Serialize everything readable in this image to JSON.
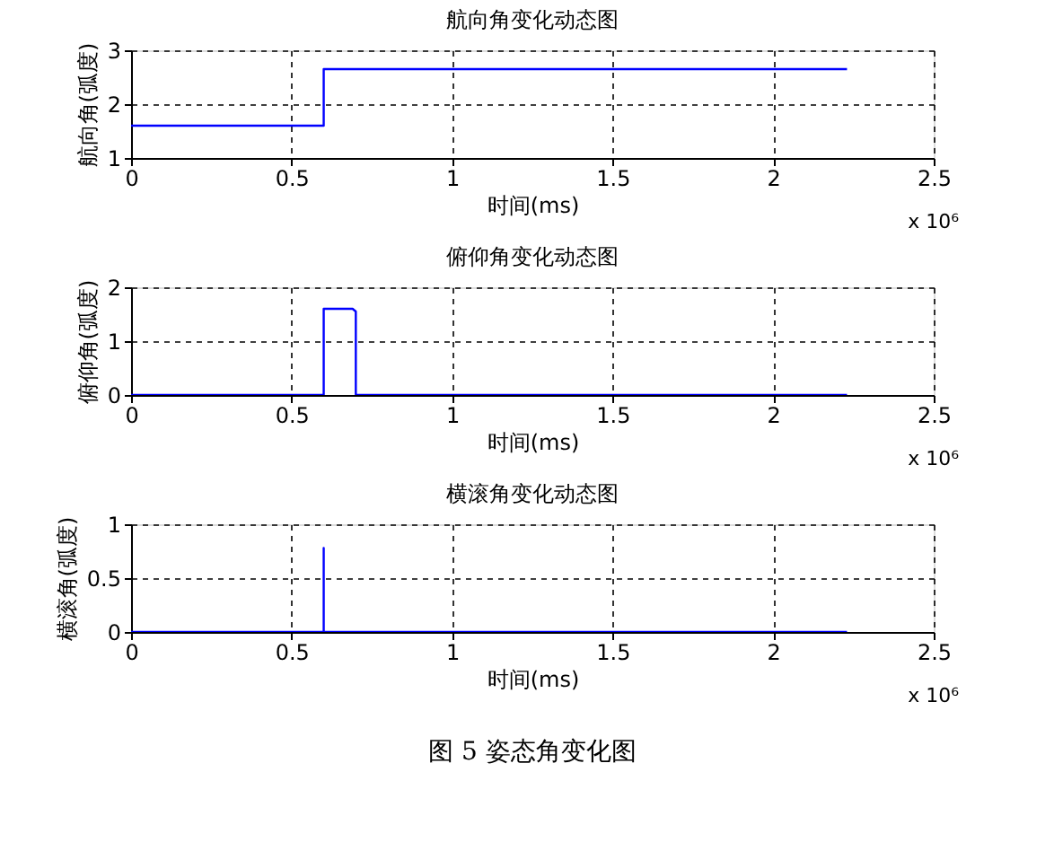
{
  "chart_data": [
    {
      "type": "line",
      "title": "航向角变化动态图",
      "xlabel": "时间(ms)",
      "ylabel": "航向角(弧度)",
      "x": [
        0,
        0.6,
        0.6,
        2.23
      ],
      "series": [
        {
          "color": "#0000ff",
          "values": [
            1.6,
            1.6,
            2.65,
            2.65
          ]
        }
      ],
      "xlim": [
        0,
        2.5
      ],
      "xticks": [
        0,
        0.5,
        1,
        1.5,
        2,
        2.5
      ],
      "ylim": [
        1,
        3
      ],
      "yticks": [
        1,
        2,
        3
      ],
      "grid": true,
      "annotations": [
        "x 10⁶"
      ]
    },
    {
      "type": "line",
      "title": "俯仰角变化动态图",
      "xlabel": "时间(ms)",
      "ylabel": "俯仰角(弧度)",
      "x": [
        0,
        0.6,
        0.6,
        0.69,
        0.7,
        0.7,
        2.23
      ],
      "series": [
        {
          "color": "#0000ff",
          "values": [
            0,
            0,
            1.6,
            1.6,
            1.55,
            0,
            0
          ]
        }
      ],
      "xlim": [
        0,
        2.5
      ],
      "xticks": [
        0,
        0.5,
        1,
        1.5,
        2,
        2.5
      ],
      "ylim": [
        0,
        2
      ],
      "yticks": [
        0,
        1,
        2
      ],
      "grid": true,
      "annotations": [
        "x 10⁶"
      ]
    },
    {
      "type": "line",
      "title": "横滚角变化动态图",
      "xlabel": "时间(ms)",
      "ylabel": "横滚角(弧度)",
      "x": [
        0,
        0.6,
        0.6,
        0.6,
        2.23
      ],
      "series": [
        {
          "color": "#0000ff",
          "values": [
            0,
            0,
            0.78,
            0,
            0
          ]
        }
      ],
      "xlim": [
        0,
        2.5
      ],
      "xticks": [
        0,
        0.5,
        1,
        1.5,
        2,
        2.5
      ],
      "ylim": [
        0,
        1
      ],
      "yticks": [
        0,
        0.5,
        1
      ],
      "grid": true,
      "annotations": [
        "x 10⁶",
        "图 5 姿态角变化图"
      ]
    }
  ]
}
